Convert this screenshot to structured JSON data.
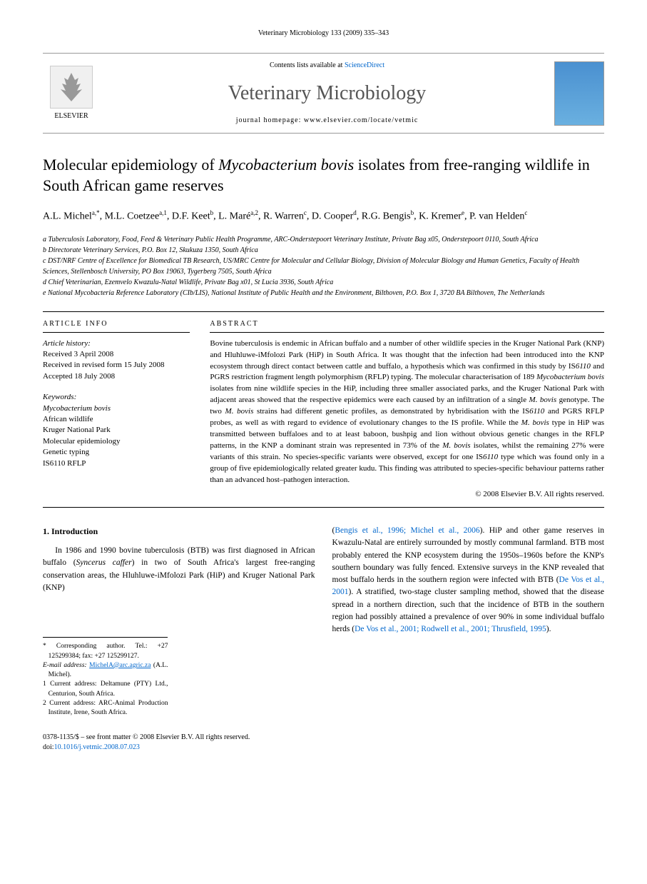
{
  "header": {
    "running_head": "Veterinary Microbiology 133 (2009) 335–343"
  },
  "masthead": {
    "elsevier_label": "ELSEVIER",
    "contents_prefix": "Contents lists available at ",
    "contents_link": "ScienceDirect",
    "journal_name": "Veterinary Microbiology",
    "homepage_prefix": "journal homepage: ",
    "homepage_url": "www.elsevier.com/locate/vetmic"
  },
  "article": {
    "title_html": "Molecular epidemiology of <em>Mycobacterium bovis</em> isolates from free-ranging wildlife in South African game reserves",
    "authors_html": "A.L. Michel<sup>a,*</sup>, M.L. Coetzee<sup>a,1</sup>, D.F. Keet<sup>b</sup>, L. Maré<sup>a,2</sup>, R. Warren<sup>c</sup>, D. Cooper<sup>d</sup>, R.G. Bengis<sup>b</sup>, K. Kremer<sup>e</sup>, P. van Helden<sup>c</sup>",
    "affiliations": [
      "a Tuberculosis Laboratory, Food, Feed & Veterinary Public Health Programme, ARC-Onderstepoort Veterinary Institute, Private Bag x05, Onderstepoort 0110, South Africa",
      "b Directorate Veterinary Services, P.O. Box 12, Skukuza 1350, South Africa",
      "c DST/NRF Centre of Excellence for Biomedical TB Research, US/MRC Centre for Molecular and Cellular Biology, Division of Molecular Biology and Human Genetics, Faculty of Health Sciences, Stellenbosch University, PO Box 19063, Tygerberg 7505, South Africa",
      "d Chief Veterinarian, Ezemvelo Kwazulu-Natal Wildlife, Private Bag x01, St Lucia 3936, South Africa",
      "e National Mycobacteria Reference Laboratory (CIb/LIS), National Institute of Public Health and the Environment, Bilthoven, P.O. Box 1, 3720 BA Bilthoven, The Netherlands"
    ]
  },
  "article_info": {
    "label": "ARTICLE INFO",
    "history_label": "Article history:",
    "history": [
      "Received 3 April 2008",
      "Received in revised form 15 July 2008",
      "Accepted 18 July 2008"
    ],
    "keywords_label": "Keywords:",
    "keywords": [
      "Mycobacterium bovis",
      "African wildlife",
      "Kruger National Park",
      "Molecular epidemiology",
      "Genetic typing",
      "IS6110 RFLP"
    ]
  },
  "abstract": {
    "label": "ABSTRACT",
    "text_html": "Bovine tuberculosis is endemic in African buffalo and a number of other wildlife species in the Kruger National Park (KNP) and Hluhluwe-iMfolozi Park (HiP) in South Africa. It was thought that the infection had been introduced into the KNP ecosystem through direct contact between cattle and buffalo, a hypothesis which was confirmed in this study by IS<em>6110</em> and PGRS restriction fragment length polymorphism (RFLP) typing. The molecular characterisation of 189 <em>Mycobacterium bovis</em> isolates from nine wildlife species in the HiP, including three smaller associated parks, and the Kruger National Park with adjacent areas showed that the respective epidemics were each caused by an infiltration of a single <em>M. bovis</em> genotype. The two <em>M. bovis</em> strains had different genetic profiles, as demonstrated by hybridisation with the IS<em>6110</em> and PGRS RFLP probes, as well as with regard to evidence of evolutionary changes to the IS profile. While the <em>M. bovis</em> type in HiP was transmitted between buffaloes and to at least baboon, bushpig and lion without obvious genetic changes in the RFLP patterns, in the KNP a dominant strain was represented in 73% of the <em>M. bovis</em> isolates, whilst the remaining 27% were variants of this strain. No species-specific variants were observed, except for one IS<em>6110</em> type which was found only in a group of five epidemiologically related greater kudu. This finding was attributed to species-specific behaviour patterns rather than an advanced host–pathogen interaction.",
    "copyright": "© 2008 Elsevier B.V. All rights reserved."
  },
  "body": {
    "section1_heading": "1. Introduction",
    "col1_html": "In 1986 and 1990 bovine tuberculosis (BTB) was first diagnosed in African buffalo (<em>Syncerus caffer</em>) in two of South Africa's largest free-ranging conservation areas, the Hluhluwe-iMfolozi Park (HiP) and Kruger National Park (KNP)",
    "col2_html": "(<span class=\"citation\">Bengis et al., 1996; Michel et al., 2006</span>). HiP and other game reserves in Kwazulu-Natal are entirely surrounded by mostly communal farmland. BTB most probably entered the KNP ecosystem during the 1950s–1960s before the KNP's southern boundary was fully fenced. Extensive surveys in the KNP revealed that most buffalo herds in the southern region were infected with BTB (<span class=\"citation\">De Vos et al., 2001</span>). A stratified, two-stage cluster sampling method, showed that the disease spread in a northern direction, such that the incidence of BTB in the southern region had possibly attained a prevalence of over 90% in some individual buffalo herds (<span class=\"citation\">De Vos et al., 2001; Rodwell et al., 2001; Thrusfield, 1995</span>)."
  },
  "footnotes": {
    "corr": "* Corresponding author. Tel.: +27 125299384; fax: +27 125299127.",
    "email_label": "E-mail address: ",
    "email": "MichelA@arc.agric.za",
    "email_suffix": " (A.L. Michel).",
    "fn1": "1 Current address: Deltamune (PTY) Ltd., Centurion, South Africa.",
    "fn2": "2 Current address: ARC-Animal Production Institute, Irene, South Africa."
  },
  "footer": {
    "issn_line": "0378-1135/$ – see front matter © 2008 Elsevier B.V. All rights reserved.",
    "doi_prefix": "doi:",
    "doi": "10.1016/j.vetmic.2008.07.023"
  },
  "colors": {
    "link": "#0066cc",
    "text": "#000000",
    "rule": "#000000",
    "journal_grey": "#555555"
  }
}
